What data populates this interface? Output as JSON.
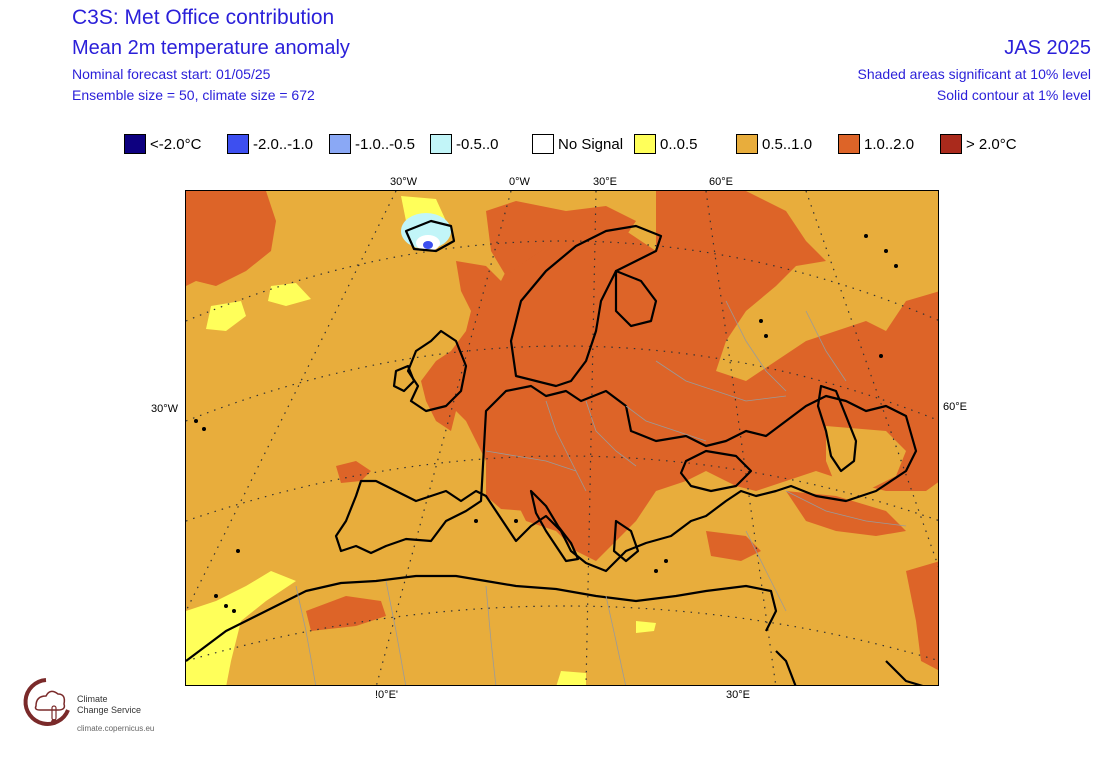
{
  "header": {
    "title": "C3S: Met Office contribution",
    "subtitle": "Mean 2m temperature anomaly",
    "forecast_start": "Nominal forecast start: 01/05/25",
    "ensemble": "Ensemble size = 50, climate size = 672",
    "season": "JAS 2025",
    "significance_shaded": "Shaded areas significant at 10% level",
    "significance_contour": "Solid contour at 1% level"
  },
  "legend": [
    {
      "label": "<-2.0°C",
      "color": "#0d0080"
    },
    {
      "label": "-2.0..-1.0",
      "color": "#3d4ff0"
    },
    {
      "label": "-1.0..-0.5",
      "color": "#8aa8f5"
    },
    {
      "label": "-0.5..0",
      "color": "#c2f5f8"
    },
    {
      "label": "No Signal",
      "color": "#ffffff"
    },
    {
      "label": "0..0.5",
      "color": "#ffff5a"
    },
    {
      "label": "0.5..1.0",
      "color": "#e8ad3c"
    },
    {
      "label": "1.0..2.0",
      "color": "#dd6428"
    },
    {
      "label": "> 2.0°C",
      "color": "#aa2a1c"
    }
  ],
  "grid_labels": {
    "top": [
      "30°W",
      "0°W",
      "30°E",
      "60°E"
    ],
    "left": "30°W",
    "right": "60°E",
    "bottom": [
      "!0°E'",
      "30°E"
    ]
  },
  "logo": {
    "line1": "Climate",
    "line2": "Change Service",
    "url": "climate.copernicus.eu",
    "icon": "thermometer-cloud-icon"
  }
}
